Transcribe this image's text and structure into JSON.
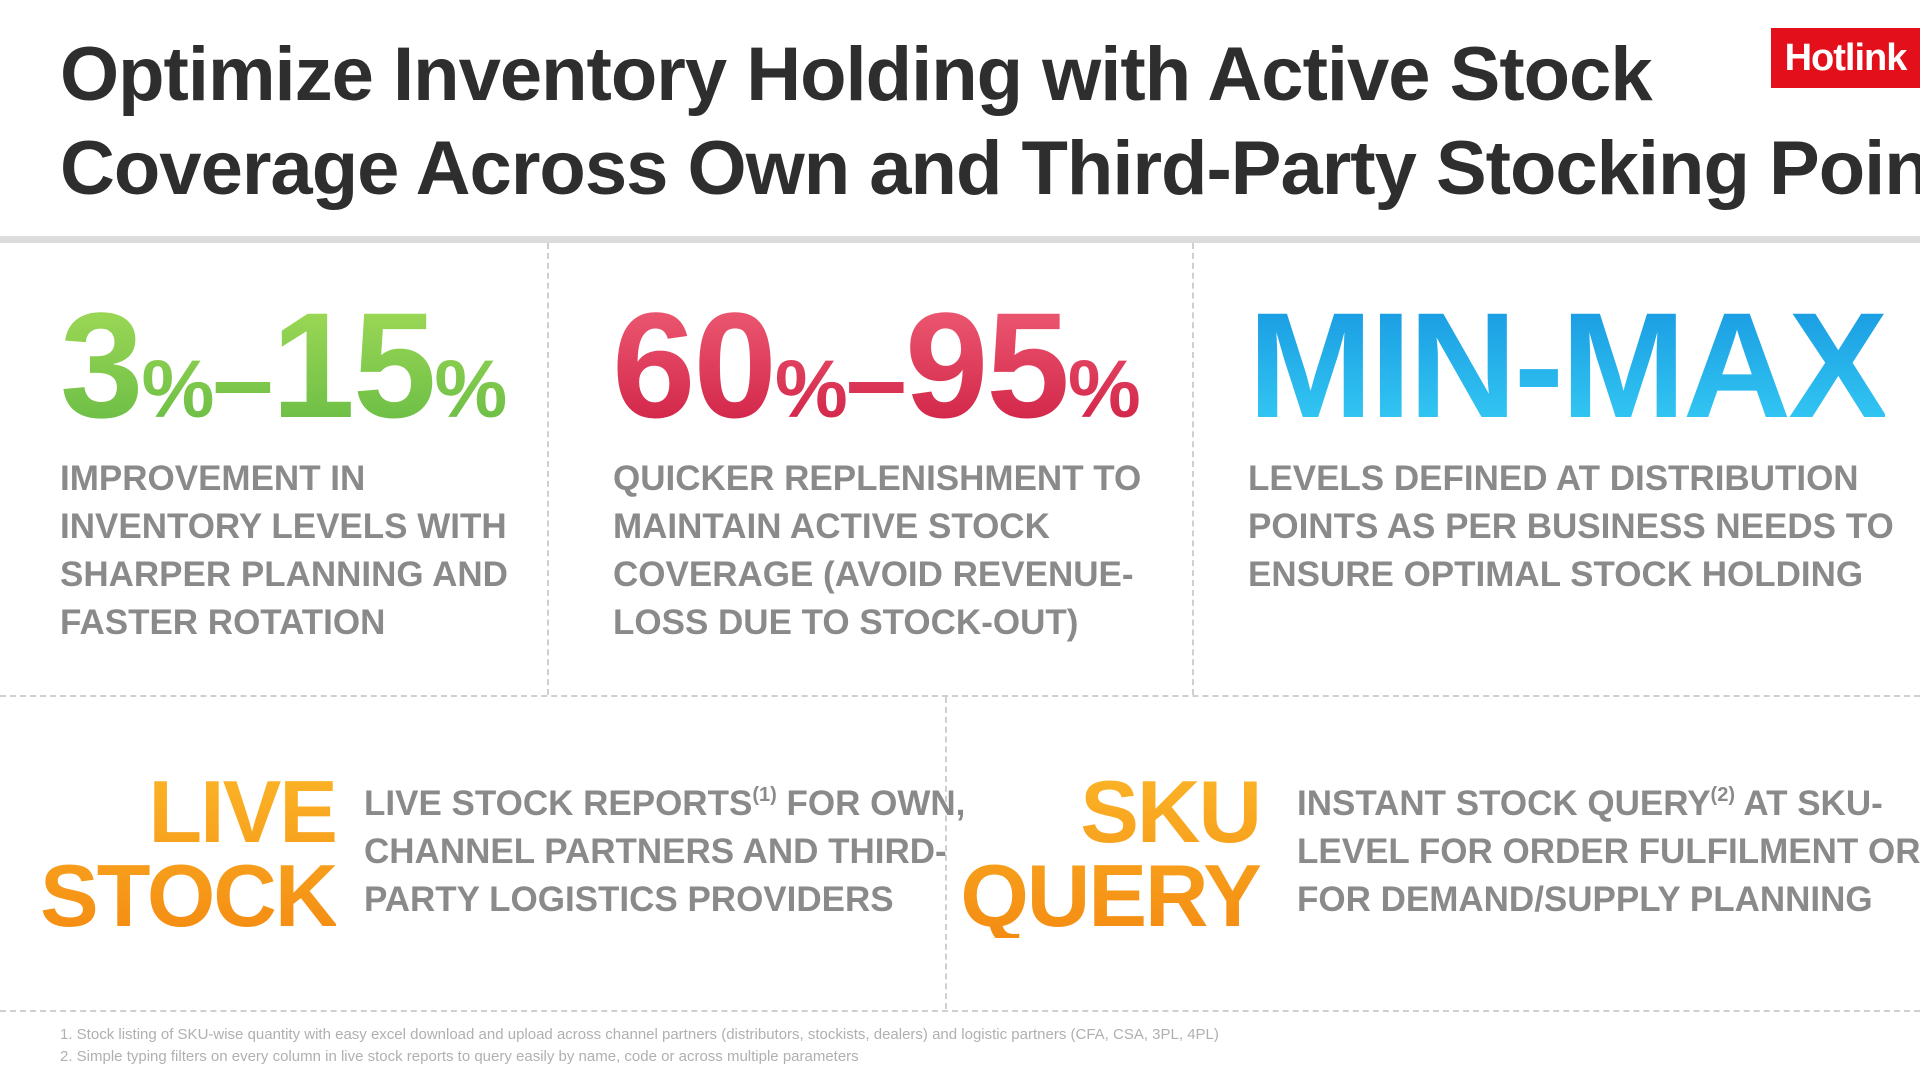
{
  "header": {
    "title_line1": "Optimize Inventory Holding with Active Stock",
    "title_line2": "Coverage Across Own and Third-Party Stocking Points",
    "logo_text": "Hotlink",
    "logo_color": "#e3101b"
  },
  "stats": [
    {
      "from_value": "3",
      "to_value": "15",
      "percent": "%",
      "dash": "–",
      "color": "#7ac943",
      "lines": [
        "IMPROVEMENT IN",
        "INVENTORY LEVELS WITH",
        "SHARPER PLANNING AND",
        "FASTER ROTATION"
      ]
    },
    {
      "from_value": "60",
      "to_value": "95",
      "percent": "%",
      "dash": "–",
      "color": "#d9304f",
      "lines": [
        "QUICKER REPLENISHMENT TO",
        "MAINTAIN ACTIVE STOCK",
        "COVERAGE (AVOID REVENUE-",
        "LOSS DUE TO STOCK-OUT)"
      ]
    },
    {
      "headline": "MIN-MAX",
      "color": "#1ab4ec",
      "lines": [
        "LEVELS DEFINED AT DISTRIBUTION",
        "POINTS AS PER BUSINESS NEEDS TO",
        "ENSURE OPTIMAL STOCK HOLDING"
      ]
    }
  ],
  "features": [
    {
      "word_line1": "LIVE",
      "word_line2": "STOCK",
      "desc_line1_pre": "LIVE STOCK REPORTS",
      "desc_sup": "(1)",
      "desc_line1_post": " FOR OWN,",
      "desc_line2": "CHANNEL PARTNERS AND THIRD-",
      "desc_line3": "PARTY LOGISTICS PROVIDERS",
      "color": "#f7a21b"
    },
    {
      "word_line1": "SKU",
      "word_line2": "QUERY",
      "desc_line1_pre": "INSTANT STOCK QUERY",
      "desc_sup": "(2)",
      "desc_line1_post": " AT SKU-",
      "desc_line2": "LEVEL FOR ORDER FULFILMENT OR",
      "desc_line3": "FOR DEMAND/SUPPLY PLANNING",
      "color": "#f7a21b"
    }
  ],
  "footnotes": [
    "1.  Stock listing of SKU-wise quantity with easy excel download and upload across channel partners (distributors, stockists, dealers) and logistic partners (CFA, CSA, 3PL, 4PL)",
    "2.  Simple typing filters on every column in live stock reports to query easily by name, code or across multiple parameters"
  ]
}
